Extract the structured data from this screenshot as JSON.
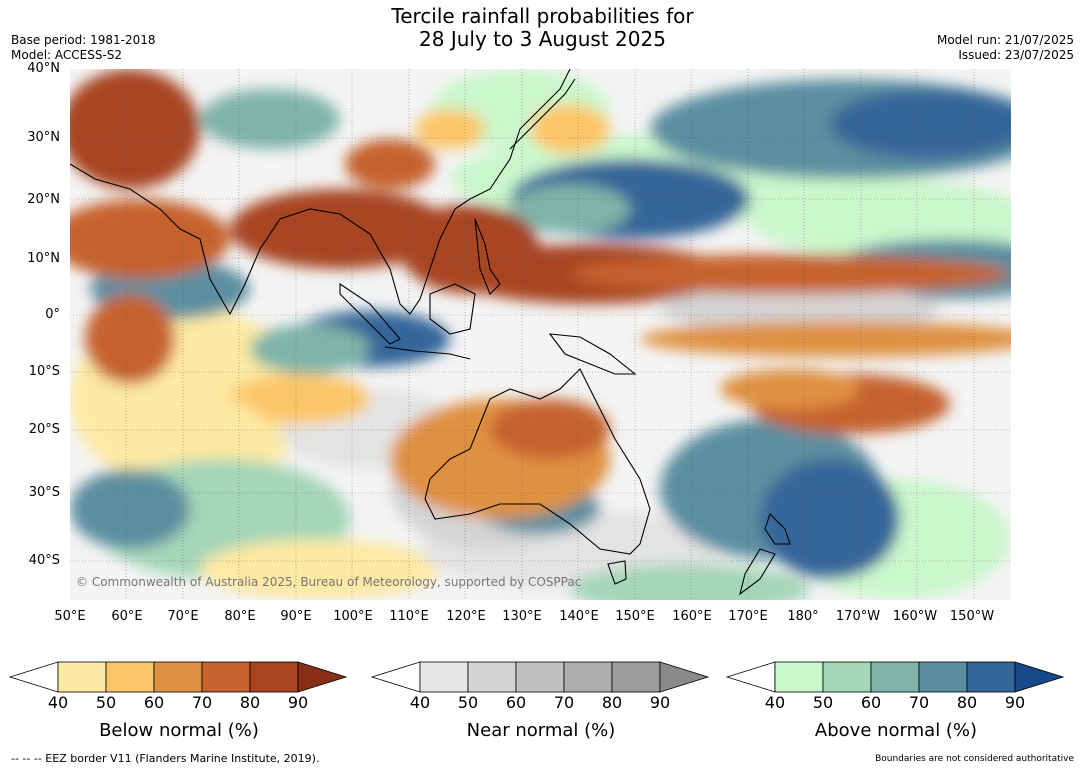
{
  "title": {
    "line1": "Tercile rainfall probabilities for",
    "line2": "28 July to 3 August 2025"
  },
  "meta_left": {
    "base_period": "Base period: 1981-2018",
    "model": "Model: ACCESS-S2"
  },
  "meta_right": {
    "model_run": "Model run: 21/07/2025",
    "issued": "Issued: 23/07/2025"
  },
  "lat_labels": [
    "40°N",
    "30°N",
    "20°N",
    "10°N",
    "0°",
    "10°S",
    "20°S",
    "30°S",
    "40°S"
  ],
  "lon_labels": [
    "50°E",
    "60°E",
    "70°E",
    "80°E",
    "90°E",
    "100°E",
    "110°E",
    "120°E",
    "130°E",
    "140°E",
    "150°E",
    "160°E",
    "170°E",
    "180°",
    "170°W",
    "160°W",
    "150°W"
  ],
  "copyright": "© Commonwealth of Australia 2025, Bureau of Meteorology, supported by COSPPac",
  "legends": [
    {
      "label": "Below normal (%)",
      "ticks": [
        "40",
        "50",
        "60",
        "70",
        "80",
        "90"
      ],
      "colors": [
        "#ffffff",
        "#fde9a3",
        "#fcc668",
        "#df9143",
        "#c6622e",
        "#a84420",
        "#8a2f17"
      ]
    },
    {
      "label": "Near normal (%)",
      "ticks": [
        "40",
        "50",
        "60",
        "70",
        "80",
        "90"
      ],
      "colors": [
        "#ffffff",
        "#e6e6e6",
        "#d4d4d4",
        "#c1c1c1",
        "#aeaeae",
        "#9d9d9d",
        "#8a8a8a"
      ]
    },
    {
      "label": "Above normal (%)",
      "ticks": [
        "40",
        "50",
        "60",
        "70",
        "80",
        "90"
      ],
      "colors": [
        "#ffffff",
        "#cbf7cc",
        "#a5d6b8",
        "#7fb4a8",
        "#5b8fa0",
        "#35669a",
        "#184a8a"
      ]
    }
  ],
  "footer": {
    "eez_note": "--  --  -- EEZ border V11 (Flanders Marine Institute, 2019).",
    "disclaimer": "Boundaries are not considered authoritative"
  }
}
